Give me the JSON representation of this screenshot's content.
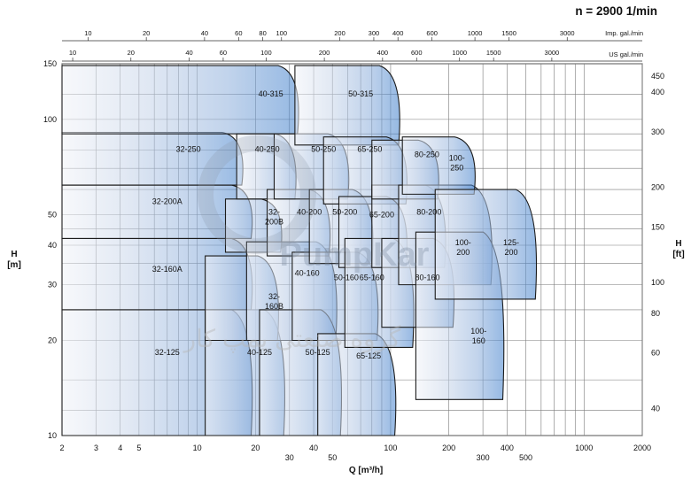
{
  "chart_data": {
    "type": "area",
    "title": "n = 2900 1/min",
    "xlabel": "Q [m³/h]",
    "ylabel_left": "H\n[m]",
    "ylabel_right": "H\n[ft]",
    "x_scale": "log",
    "y_scale": "log",
    "xlim": [
      2,
      2000
    ],
    "ylim": [
      10,
      150
    ],
    "x_ticks": [
      "2",
      "3",
      "4",
      "5",
      "10",
      "20",
      "30",
      "40",
      "50",
      "100",
      "200",
      "300",
      "400",
      "500",
      "1000",
      "2000"
    ],
    "y_ticks": [
      "10",
      "20",
      "30",
      "40",
      "50",
      "100",
      "150"
    ],
    "top_axis_imp": {
      "label": "Imp. gal./min",
      "ticks": [
        "10",
        "20",
        "40",
        "60",
        "80",
        "100",
        "200",
        "300",
        "400",
        "600",
        "1000",
        "1500",
        "3000"
      ]
    },
    "top_axis_us": {
      "label": "US gal./min",
      "ticks": [
        "10",
        "20",
        "40",
        "60",
        "100",
        "200",
        "400",
        "600",
        "1000",
        "1500",
        "3000"
      ]
    },
    "right_axis_ticks": [
      "450",
      "400",
      "300",
      "200",
      "150",
      "100",
      "80",
      "60",
      "40"
    ],
    "watermark": "گروه صنعتی پمپ کار",
    "watermark_logo": "PumpKar",
    "zones": [
      {
        "name": "32-125",
        "q_min": 2,
        "q_max": 19,
        "h_min": 10,
        "h_max": 25,
        "q_label": 7,
        "h_label": 18
      },
      {
        "name": "40-125",
        "q_min": 11,
        "q_max": 28,
        "h_min": 10,
        "h_max": 25,
        "q_label": 21,
        "h_label": 18
      },
      {
        "name": "50-125",
        "q_min": 21,
        "q_max": 55,
        "h_min": 10,
        "h_max": 25,
        "q_label": 42,
        "h_label": 18
      },
      {
        "name": "65-125",
        "q_min": 42,
        "q_max": 105,
        "h_min": 10,
        "h_max": 21,
        "q_label": 77,
        "h_label": 17.5
      },
      {
        "name": "32-160A",
        "q_min": 2,
        "q_max": 19,
        "h_min": 25,
        "h_max": 42,
        "q_label": 7,
        "h_label": 33
      },
      {
        "name": "32-160B",
        "q_min": 11,
        "q_max": 26,
        "h_min": 20,
        "h_max": 37,
        "q_label": 25,
        "h_label": 27
      },
      {
        "name": "40-160",
        "q_min": 18,
        "q_max": 52,
        "h_min": 20,
        "h_max": 41,
        "q_label": 37,
        "h_label": 32
      },
      {
        "name": "50-160",
        "q_min": 31,
        "q_max": 85,
        "h_min": 20,
        "h_max": 38,
        "q_label": 59,
        "h_label": 31
      },
      {
        "name": "65-160",
        "q_min": 58,
        "q_max": 130,
        "h_min": 19,
        "h_max": 42,
        "q_label": 80,
        "h_label": 31
      },
      {
        "name": "80-160",
        "q_min": 90,
        "q_max": 210,
        "h_min": 22,
        "h_max": 42,
        "q_label": 155,
        "h_label": 31
      },
      {
        "name": "100-160",
        "q_min": 135,
        "q_max": 380,
        "h_min": 13,
        "h_max": 44,
        "q_label": 285,
        "h_label": 21
      },
      {
        "name": "32-200A",
        "q_min": 2,
        "q_max": 19,
        "h_min": 42,
        "h_max": 62,
        "q_label": 7,
        "h_label": 54
      },
      {
        "name": "32-200B",
        "q_min": 14,
        "q_max": 27,
        "h_min": 38,
        "h_max": 56,
        "q_label": 25,
        "h_label": 50
      },
      {
        "name": "40-200",
        "q_min": 23,
        "q_max": 48,
        "h_min": 37,
        "h_max": 60,
        "q_label": 38,
        "h_label": 50
      },
      {
        "name": "50-200",
        "q_min": 38,
        "q_max": 80,
        "h_min": 35,
        "h_max": 60,
        "q_label": 58,
        "h_label": 50
      },
      {
        "name": "65-200",
        "q_min": 54,
        "q_max": 120,
        "h_min": 34,
        "h_max": 57,
        "q_label": 90,
        "h_label": 49
      },
      {
        "name": "80-200",
        "q_min": 80,
        "q_max": 190,
        "h_min": 34,
        "h_max": 62,
        "q_label": 158,
        "h_label": 50
      },
      {
        "name": "100-200",
        "q_min": 110,
        "q_max": 330,
        "h_min": 30,
        "h_max": 62,
        "q_label": 237,
        "h_label": 40
      },
      {
        "name": "125-200",
        "q_min": 170,
        "q_max": 560,
        "h_min": 27,
        "h_max": 60,
        "q_label": 420,
        "h_label": 40
      },
      {
        "name": "32-250",
        "q_min": 2,
        "q_max": 17,
        "h_min": 62,
        "h_max": 91,
        "q_label": 9,
        "h_label": 79
      },
      {
        "name": "40-250",
        "q_min": 16,
        "q_max": 32,
        "h_min": 56,
        "h_max": 90,
        "q_label": 23,
        "h_label": 79
      },
      {
        "name": "50-250",
        "q_min": 25,
        "q_max": 60,
        "h_min": 56,
        "h_max": 90,
        "q_label": 45,
        "h_label": 79
      },
      {
        "name": "65-250",
        "q_min": 45,
        "q_max": 120,
        "h_min": 54,
        "h_max": 88,
        "q_label": 78,
        "h_label": 79
      },
      {
        "name": "80-250",
        "q_min": 80,
        "q_max": 175,
        "h_min": 56,
        "h_max": 86,
        "q_label": 154,
        "h_label": 76
      },
      {
        "name": "100-250",
        "q_min": 115,
        "q_max": 270,
        "h_min": 58,
        "h_max": 88,
        "q_label": 220,
        "h_label": 74
      },
      {
        "name": "40-315",
        "q_min": 2,
        "q_max": 33,
        "h_min": 90,
        "h_max": 148,
        "q_label": 24,
        "h_label": 118
      },
      {
        "name": "50-315",
        "q_min": 32,
        "q_max": 110,
        "h_min": 83,
        "h_max": 148,
        "q_label": 70,
        "h_label": 118
      }
    ]
  }
}
